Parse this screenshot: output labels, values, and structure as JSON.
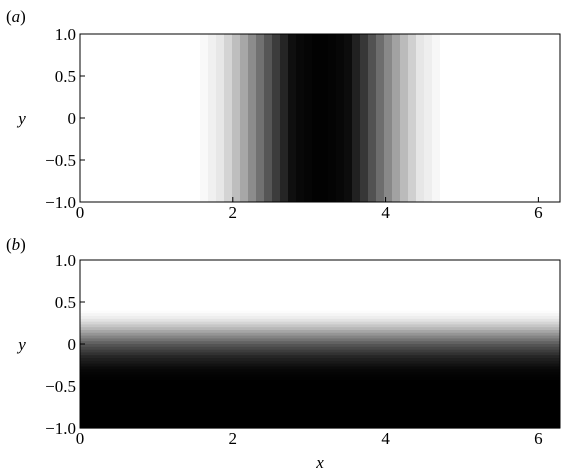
{
  "chart_data": [
    {
      "type": "heatmap",
      "panel_label_open": "(",
      "panel_label_letter": "a",
      "panel_label_close": ")",
      "xlabel": "",
      "ylabel": "y",
      "xlim": [
        0,
        6.283
      ],
      "ylim": [
        -1.0,
        1.0
      ],
      "x_ticks": [
        0,
        2,
        4,
        6
      ],
      "x_tick_labels": [
        "0",
        "2",
        "4",
        "6"
      ],
      "y_ticks": [
        1.0,
        0.5,
        0,
        -0.5,
        -1.0
      ],
      "y_tick_labels": [
        "1.0",
        "0.5",
        "0",
        "−0.5",
        "−1.0"
      ],
      "colormap": "white-to-black",
      "field_varies_along": "x",
      "intensity_profile": [
        {
          "x": 0.0,
          "v": 0.0
        },
        {
          "x": 1.55,
          "v": 0.0
        },
        {
          "x": 1.85,
          "v": 0.1
        },
        {
          "x": 2.1,
          "v": 0.3
        },
        {
          "x": 2.35,
          "v": 0.55
        },
        {
          "x": 2.6,
          "v": 0.8
        },
        {
          "x": 2.8,
          "v": 0.96
        },
        {
          "x": 3.14,
          "v": 1.0
        },
        {
          "x": 3.5,
          "v": 0.96
        },
        {
          "x": 3.7,
          "v": 0.8
        },
        {
          "x": 3.95,
          "v": 0.55
        },
        {
          "x": 4.2,
          "v": 0.3
        },
        {
          "x": 4.45,
          "v": 0.1
        },
        {
          "x": 4.75,
          "v": 0.0
        },
        {
          "x": 6.283,
          "v": 0.0
        }
      ]
    },
    {
      "type": "heatmap",
      "panel_label_open": "(",
      "panel_label_letter": "b",
      "panel_label_close": ")",
      "xlabel": "x",
      "ylabel": "y",
      "xlim": [
        0,
        6.283
      ],
      "ylim": [
        -1.0,
        1.0
      ],
      "x_ticks": [
        0,
        2,
        4,
        6
      ],
      "x_tick_labels": [
        "0",
        "2",
        "4",
        "6"
      ],
      "y_ticks": [
        1.0,
        0.5,
        0,
        -0.5,
        -1.0
      ],
      "y_tick_labels": [
        "1.0",
        "0.5",
        "0",
        "−0.5",
        "−1.0"
      ],
      "colormap": "white-to-black",
      "field_varies_along": "y",
      "intensity_profile": [
        {
          "y": 1.0,
          "v": 0.0
        },
        {
          "y": 0.4,
          "v": 0.0
        },
        {
          "y": 0.3,
          "v": 0.08
        },
        {
          "y": 0.2,
          "v": 0.25
        },
        {
          "y": 0.1,
          "v": 0.45
        },
        {
          "y": 0.0,
          "v": 0.65
        },
        {
          "y": -0.15,
          "v": 0.85
        },
        {
          "y": -0.3,
          "v": 0.97
        },
        {
          "y": -0.45,
          "v": 1.0
        },
        {
          "y": -1.0,
          "v": 1.0
        }
      ]
    }
  ]
}
